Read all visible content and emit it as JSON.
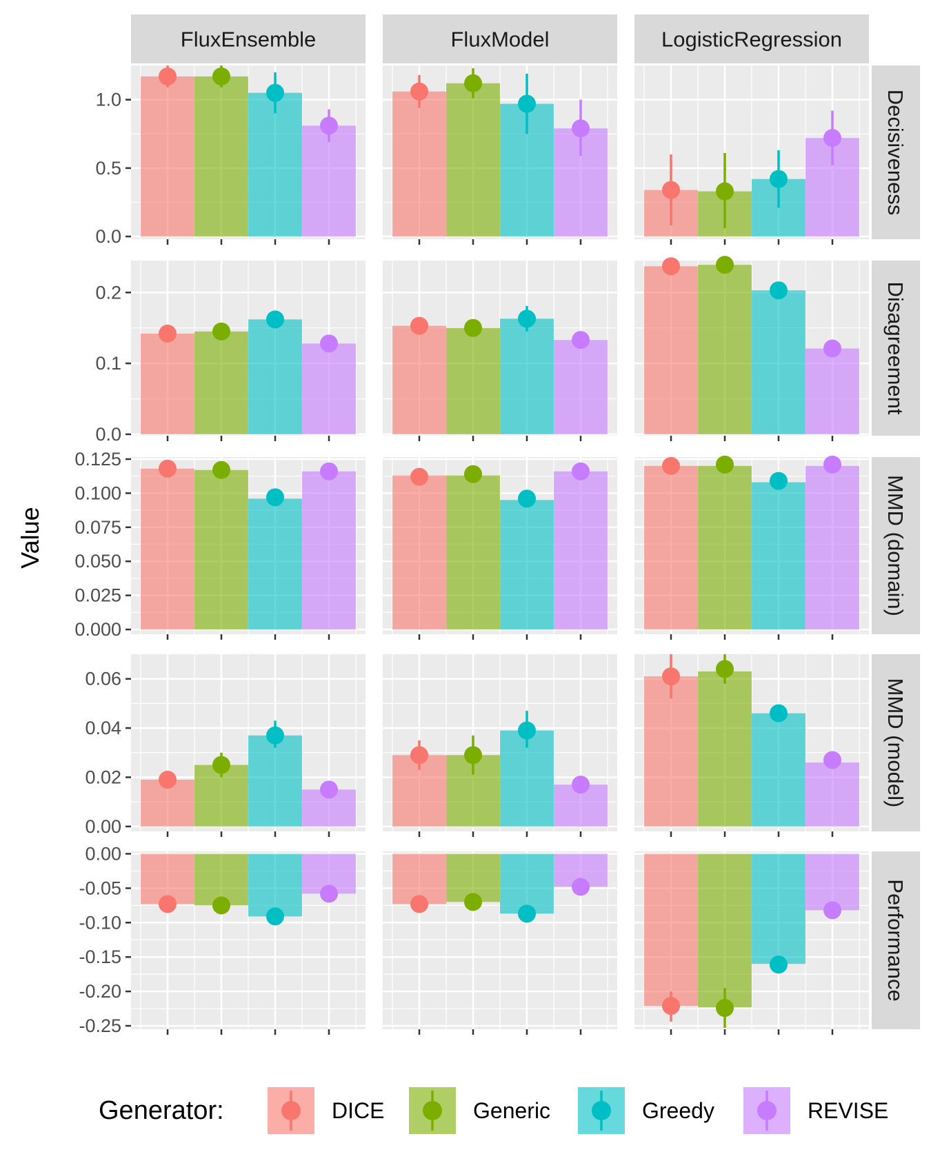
{
  "chart_data": {
    "type": "bar",
    "ylabel": "Value",
    "xlabel": "",
    "legend": {
      "title": "Generator:",
      "position": "bottom",
      "entries": [
        "DICE",
        "Generic",
        "Greedy",
        "REVISE"
      ]
    },
    "colors": {
      "DICE": "#F8766D",
      "Generic": "#7CAE00",
      "Greedy": "#00BFC4",
      "REVISE": "#C77CFF"
    },
    "columns": [
      "FluxEnsemble",
      "FluxModel",
      "LogisticRegression"
    ],
    "rows": [
      {
        "name": "Decisiveness",
        "ylim": [
          -0.02,
          1.25
        ],
        "ticks": [
          {
            "v": 0.0,
            "label": "0.0"
          },
          {
            "v": 0.5,
            "label": "0.5"
          },
          {
            "v": 1.0,
            "label": "1.0"
          }
        ],
        "bar": [
          [
            1.17,
            1.17,
            1.05,
            0.81
          ],
          [
            1.06,
            1.12,
            0.97,
            0.79
          ],
          [
            0.34,
            0.33,
            0.42,
            0.72
          ]
        ],
        "point": [
          [
            1.17,
            1.17,
            1.05,
            0.81
          ],
          [
            1.06,
            1.12,
            0.97,
            0.79
          ],
          [
            0.34,
            0.33,
            0.42,
            0.72
          ]
        ],
        "err": [
          [
            [
              1.09,
              1.25
            ],
            [
              1.09,
              1.25
            ],
            [
              0.9,
              1.2
            ],
            [
              0.69,
              0.93
            ]
          ],
          [
            [
              0.94,
              1.18
            ],
            [
              1.01,
              1.23
            ],
            [
              0.75,
              1.19
            ],
            [
              0.59,
              1.0
            ]
          ],
          [
            [
              0.08,
              0.6
            ],
            [
              0.06,
              0.61
            ],
            [
              0.21,
              0.63
            ],
            [
              0.52,
              0.92
            ]
          ]
        ]
      },
      {
        "name": "Disagreement",
        "ylim": [
          -0.002,
          0.245
        ],
        "ticks": [
          {
            "v": 0.0,
            "label": "0.0"
          },
          {
            "v": 0.1,
            "label": "0.1"
          },
          {
            "v": 0.2,
            "label": "0.2"
          }
        ],
        "bar": [
          [
            0.142,
            0.145,
            0.162,
            0.128
          ],
          [
            0.153,
            0.15,
            0.163,
            0.133
          ],
          [
            0.237,
            0.239,
            0.203,
            0.121
          ]
        ],
        "point": [
          [
            0.142,
            0.145,
            0.162,
            0.128
          ],
          [
            0.153,
            0.15,
            0.163,
            0.133
          ],
          [
            0.237,
            0.239,
            0.203,
            0.121
          ]
        ],
        "err": [
          [
            [
              0.137,
              0.147
            ],
            [
              0.14,
              0.15
            ],
            [
              0.156,
              0.168
            ],
            [
              0.123,
              0.133
            ]
          ],
          [
            [
              0.148,
              0.158
            ],
            [
              0.145,
              0.155
            ],
            [
              0.145,
              0.181
            ],
            [
              0.128,
              0.138
            ]
          ],
          [
            [
              0.232,
              0.242
            ],
            [
              0.234,
              0.244
            ],
            [
              0.198,
              0.208
            ],
            [
              0.116,
              0.126
            ]
          ]
        ]
      },
      {
        "name": "MMD (domain)",
        "ylim": [
          -0.0035,
          0.1265
        ],
        "ticks": [
          {
            "v": 0.0,
            "label": "0.000"
          },
          {
            "v": 0.025,
            "label": "0.025"
          },
          {
            "v": 0.05,
            "label": "0.050"
          },
          {
            "v": 0.075,
            "label": "0.075"
          },
          {
            "v": 0.1,
            "label": "0.100"
          },
          {
            "v": 0.125,
            "label": "0.125"
          }
        ],
        "bar": [
          [
            0.118,
            0.117,
            0.096,
            0.116
          ],
          [
            0.113,
            0.113,
            0.095,
            0.116
          ],
          [
            0.12,
            0.12,
            0.108,
            0.12
          ]
        ],
        "point": [
          [
            0.118,
            0.117,
            0.097,
            0.116
          ],
          [
            0.112,
            0.114,
            0.096,
            0.116
          ],
          [
            0.12,
            0.121,
            0.109,
            0.121
          ]
        ],
        "err": [
          [
            [
              0.116,
              0.121
            ],
            [
              0.115,
              0.12
            ],
            [
              0.094,
              0.1
            ],
            [
              0.114,
              0.119
            ]
          ],
          [
            [
              0.109,
              0.115
            ],
            [
              0.112,
              0.117
            ],
            [
              0.093,
              0.099
            ],
            [
              0.114,
              0.119
            ]
          ],
          [
            [
              0.118,
              0.123
            ],
            [
              0.118,
              0.124
            ],
            [
              0.106,
              0.112
            ],
            [
              0.119,
              0.124
            ]
          ]
        ]
      },
      {
        "name": "MMD (model)",
        "ylim": [
          -0.002,
          0.07
        ],
        "ticks": [
          {
            "v": 0.0,
            "label": "0.00"
          },
          {
            "v": 0.02,
            "label": "0.02"
          },
          {
            "v": 0.04,
            "label": "0.04"
          },
          {
            "v": 0.06,
            "label": "0.06"
          }
        ],
        "bar": [
          [
            0.019,
            0.025,
            0.037,
            0.015
          ],
          [
            0.029,
            0.029,
            0.039,
            0.017
          ],
          [
            0.061,
            0.063,
            0.046,
            0.026
          ]
        ],
        "point": [
          [
            0.019,
            0.025,
            0.037,
            0.015
          ],
          [
            0.029,
            0.029,
            0.039,
            0.017
          ],
          [
            0.061,
            0.064,
            0.046,
            0.027
          ]
        ],
        "err": [
          [
            [
              0.018,
              0.021
            ],
            [
              0.02,
              0.03
            ],
            [
              0.032,
              0.043
            ],
            [
              0.014,
              0.017
            ]
          ],
          [
            [
              0.023,
              0.035
            ],
            [
              0.021,
              0.037
            ],
            [
              0.032,
              0.047
            ],
            [
              0.015,
              0.019
            ]
          ],
          [
            [
              0.052,
              0.07
            ],
            [
              0.058,
              0.07
            ],
            [
              0.044,
              0.049
            ],
            [
              0.025,
              0.029
            ]
          ]
        ]
      },
      {
        "name": "Performance",
        "ylim": [
          -0.255,
          0.0035
        ],
        "ticks": [
          {
            "v": 0.0,
            "label": "0.00"
          },
          {
            "v": -0.05,
            "label": "-0.05"
          },
          {
            "v": -0.1,
            "label": "-0.10"
          },
          {
            "v": -0.15,
            "label": "-0.15"
          },
          {
            "v": -0.2,
            "label": "-0.20"
          },
          {
            "v": -0.25,
            "label": "-0.25"
          }
        ],
        "bar": [
          [
            -0.073,
            -0.075,
            -0.091,
            -0.058
          ],
          [
            -0.073,
            -0.07,
            -0.087,
            -0.048
          ],
          [
            -0.221,
            -0.223,
            -0.16,
            -0.082
          ]
        ],
        "point": [
          [
            -0.073,
            -0.075,
            -0.091,
            -0.058
          ],
          [
            -0.073,
            -0.07,
            -0.087,
            -0.048
          ],
          [
            -0.221,
            -0.224,
            -0.161,
            -0.082
          ]
        ],
        "err": [
          [
            [
              -0.076,
              -0.07
            ],
            [
              -0.078,
              -0.072
            ],
            [
              -0.095,
              -0.087
            ],
            [
              -0.061,
              -0.055
            ]
          ],
          [
            [
              -0.076,
              -0.07
            ],
            [
              -0.073,
              -0.067
            ],
            [
              -0.096,
              -0.078
            ],
            [
              -0.051,
              -0.045
            ]
          ],
          [
            [
              -0.244,
              -0.2
            ],
            [
              -0.253,
              -0.195
            ],
            [
              -0.166,
              -0.155
            ],
            [
              -0.085,
              -0.079
            ]
          ]
        ]
      }
    ]
  }
}
